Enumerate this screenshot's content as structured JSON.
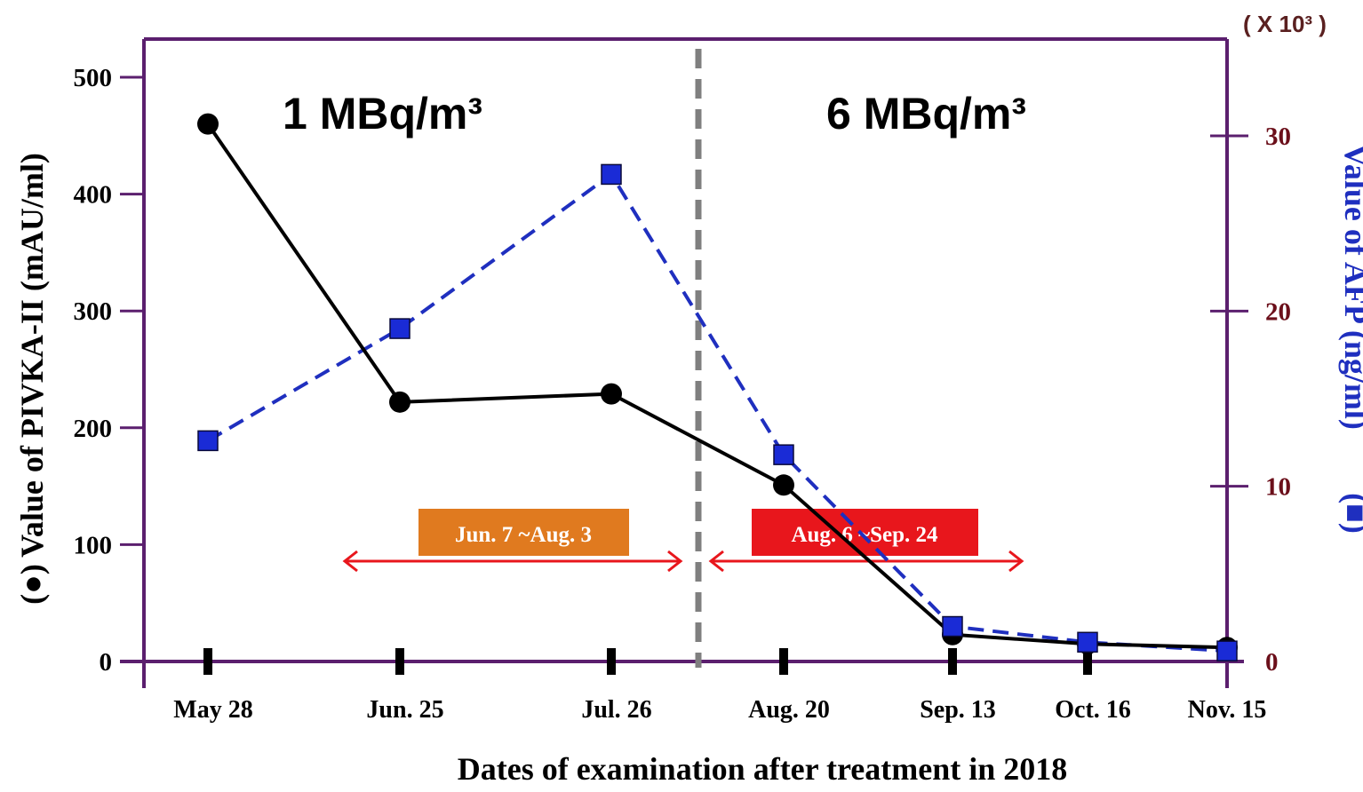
{
  "chart_data": {
    "type": "line",
    "categories": [
      "May 28",
      "Jun. 25",
      "Jul. 26",
      "Aug. 20",
      "Sep. 13",
      "Oct. 16",
      "Nov. 15"
    ],
    "series": [
      {
        "name": "PIVKA-II",
        "axis": "left",
        "values": [
          460,
          222,
          229,
          151,
          23,
          15,
          12
        ],
        "color": "#000000",
        "style": "solid",
        "marker": "circle"
      },
      {
        "name": "AFP",
        "axis": "right",
        "values": [
          12.6,
          19.0,
          27.8,
          11.8,
          2.0,
          1.1,
          0.6
        ],
        "color": "#1f2fbf",
        "style": "dashed",
        "marker": "square"
      }
    ],
    "xlabel": "Dates of examination after treatment in 2018",
    "ylabel": "Value of PIVKA-II (mAU/ml)",
    "ylabel_marker": "(●)",
    "y2label": "Value of AFP (ng/ml)",
    "y2label_marker": "(■)",
    "y2_unit": "( X 10³ )",
    "ylim": [
      0,
      500
    ],
    "y2lim": [
      0,
      30
    ],
    "yticks": [
      "0",
      "100",
      "200",
      "300",
      "400",
      "500"
    ],
    "y2ticks": [
      "0",
      "10",
      "20",
      "30"
    ],
    "annotations": {
      "left_period": "1 MBq/m³",
      "right_period": "6 MBq/m³",
      "period1_box": "Jun. 7 ~Aug. 3",
      "period2_box": "Aug. 6 ~Sep. 24"
    },
    "colors": {
      "frame": "#5b1f6e",
      "period1_box": "#e07a1f",
      "period2_box": "#e8161c",
      "arrow": "#e8161c",
      "divider": "#7f7f7f"
    }
  }
}
